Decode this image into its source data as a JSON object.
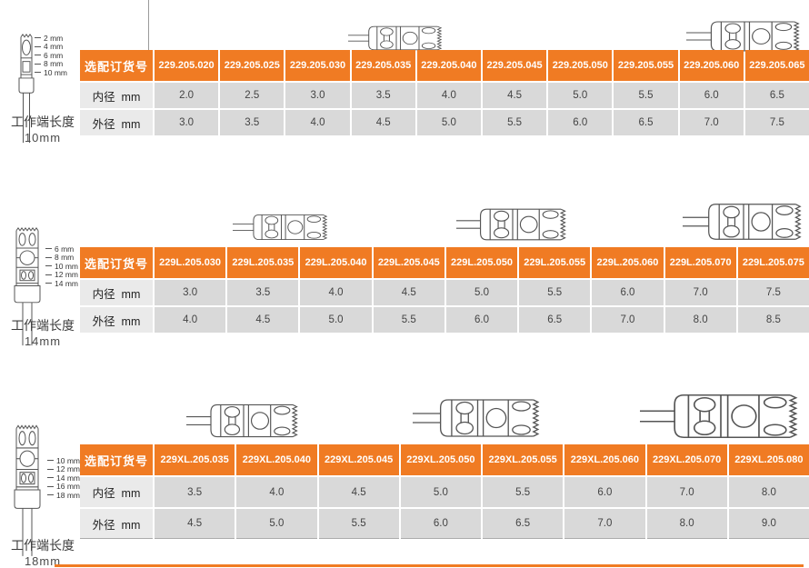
{
  "colors": {
    "accent": "#F07B23",
    "data_cell": "#D9D9D9",
    "label_cell": "#EAEAEA"
  },
  "sections": [
    {
      "caption_line1": "工作端长度",
      "caption_line2": "10mm",
      "diagram_labels": [
        "2 mm",
        "4 mm",
        "6 mm",
        "8 mm",
        "10 mm"
      ],
      "table": {
        "header_label": "选配订货号",
        "columns": [
          "229.205.020",
          "229.205.025",
          "229.205.030",
          "229.205.035",
          "229.205.040",
          "229.205.045",
          "229.205.050",
          "229.205.055",
          "229.205.060",
          "229.205.065"
        ],
        "rows": [
          {
            "label": "内径  mm",
            "values": [
              "2.0",
              "2.5",
              "3.0",
              "3.5",
              "4.0",
              "4.5",
              "5.0",
              "5.5",
              "6.0",
              "6.5"
            ]
          },
          {
            "label": "外径  mm",
            "values": [
              "3.0",
              "3.5",
              "4.0",
              "4.5",
              "5.0",
              "5.5",
              "6.0",
              "6.5",
              "7.0",
              "7.5"
            ]
          }
        ]
      }
    },
    {
      "caption_line1": "工作端长度",
      "caption_line2": "14mm",
      "diagram_labels": [
        "6 mm",
        "8 mm",
        "10 mm",
        "12 mm",
        "14 mm"
      ],
      "table": {
        "header_label": "选配订货号",
        "columns": [
          "229L.205.030",
          "229L.205.035",
          "229L.205.040",
          "229L.205.045",
          "229L.205.050",
          "229L.205.055",
          "229L.205.060",
          "229L.205.070",
          "229L.205.075"
        ],
        "rows": [
          {
            "label": "内径  mm",
            "values": [
              "3.0",
              "3.5",
              "4.0",
              "4.5",
              "5.0",
              "5.5",
              "6.0",
              "7.0",
              "7.5"
            ]
          },
          {
            "label": "外径  mm",
            "values": [
              "4.0",
              "4.5",
              "5.0",
              "5.5",
              "6.0",
              "6.5",
              "7.0",
              "8.0",
              "8.5"
            ]
          }
        ]
      }
    },
    {
      "caption_line1": "工作端长度",
      "caption_line2": "18mm",
      "diagram_labels": [
        "10 mm",
        "12 mm",
        "14 mm",
        "16 mm",
        "18 mm"
      ],
      "table": {
        "header_label": "选配订货号",
        "columns": [
          "229XL.205.035",
          "229XL.205.040",
          "229XL.205.045",
          "229XL.205.050",
          "229XL.205.055",
          "229XL.205.060",
          "229XL.205.070",
          "229XL.205.080"
        ],
        "rows": [
          {
            "label": "内径  mm",
            "values": [
              "3.5",
              "4.0",
              "4.5",
              "5.0",
              "5.5",
              "6.0",
              "7.0",
              "8.0"
            ]
          },
          {
            "label": "外径  mm",
            "values": [
              "4.5",
              "5.0",
              "5.5",
              "6.0",
              "6.5",
              "7.0",
              "8.0",
              "9.0"
            ]
          }
        ]
      }
    }
  ]
}
